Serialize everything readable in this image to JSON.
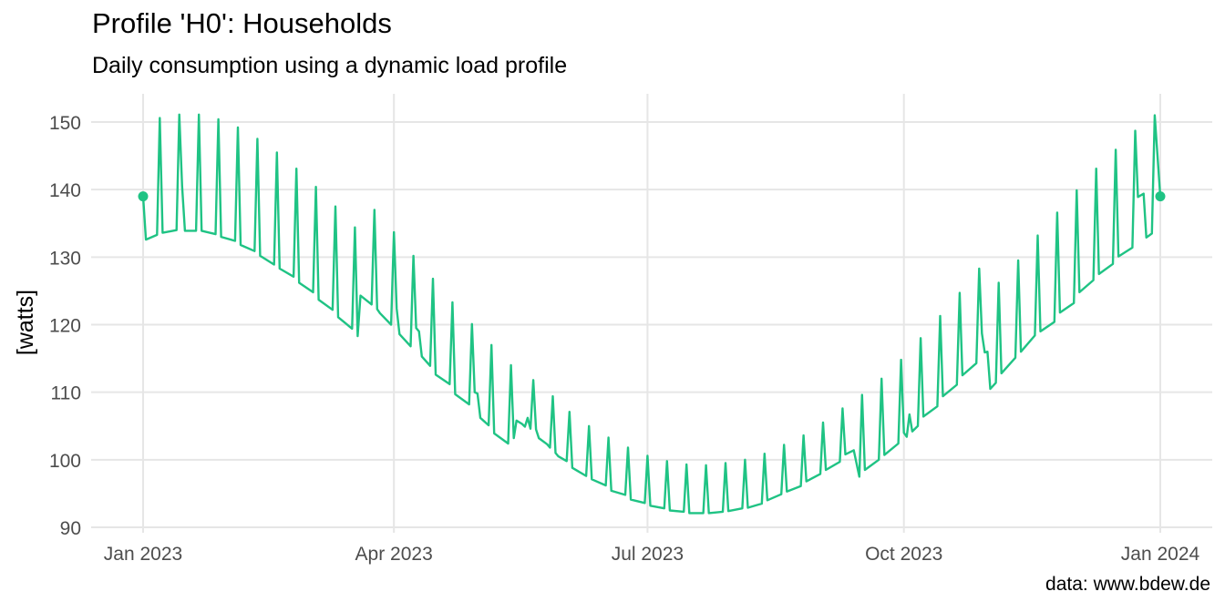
{
  "title": "Profile 'H0': Households",
  "subtitle": "Daily consumption using a dynamic load profile",
  "caption": "data: www.bdew.de",
  "colors": {
    "line": "#1fc384",
    "grid": "#e6e6e6",
    "text": "#4d4d4d"
  },
  "chart_data": {
    "type": "line",
    "title": "Profile 'H0': Households",
    "subtitle": "Daily consumption using a dynamic load profile",
    "xlabel": "",
    "ylabel": "[watts]",
    "x_range": [
      "2023-01-01",
      "2024-01-01"
    ],
    "ylim": [
      90,
      153
    ],
    "grid": true,
    "x_ticks": [
      {
        "date": "2023-01-01",
        "label": "Jan 2023"
      },
      {
        "date": "2023-04-01",
        "label": "Apr 2023"
      },
      {
        "date": "2023-07-01",
        "label": "Jul 2023"
      },
      {
        "date": "2023-10-01",
        "label": "Oct 2023"
      },
      {
        "date": "2024-01-01",
        "label": "Jan 2024"
      }
    ],
    "y_ticks": [
      90,
      100,
      110,
      120,
      130,
      140,
      150
    ],
    "series": [
      {
        "name": "",
        "points": [
          [
            "2023-01-01",
            139.0
          ],
          [
            "2023-01-02",
            132.6
          ],
          [
            "2023-01-06",
            133.3
          ],
          [
            "2023-01-07",
            150.6
          ],
          [
            "2023-01-08",
            133.6
          ],
          [
            "2023-01-13",
            134.0
          ],
          [
            "2023-01-14",
            151.1
          ],
          [
            "2023-01-15",
            140.5
          ],
          [
            "2023-01-16",
            133.9
          ],
          [
            "2023-01-20",
            133.9
          ],
          [
            "2023-01-21",
            151.1
          ],
          [
            "2023-01-22",
            133.9
          ],
          [
            "2023-01-27",
            133.4
          ],
          [
            "2023-01-28",
            150.4
          ],
          [
            "2023-01-29",
            133.0
          ],
          [
            "2023-02-03",
            132.4
          ],
          [
            "2023-02-04",
            149.2
          ],
          [
            "2023-02-05",
            131.8
          ],
          [
            "2023-02-10",
            130.9
          ],
          [
            "2023-02-11",
            147.5
          ],
          [
            "2023-02-12",
            130.2
          ],
          [
            "2023-02-17",
            128.9
          ],
          [
            "2023-02-18",
            145.5
          ],
          [
            "2023-02-19",
            128.3
          ],
          [
            "2023-02-24",
            127.1
          ],
          [
            "2023-02-25",
            143.1
          ],
          [
            "2023-02-26",
            126.2
          ],
          [
            "2023-03-03",
            124.8
          ],
          [
            "2023-03-04",
            140.4
          ],
          [
            "2023-03-05",
            123.7
          ],
          [
            "2023-03-10",
            122.2
          ],
          [
            "2023-03-11",
            137.5
          ],
          [
            "2023-03-12",
            121.1
          ],
          [
            "2023-03-17",
            119.4
          ],
          [
            "2023-03-18",
            134.4
          ],
          [
            "2023-03-19",
            118.3
          ],
          [
            "2023-03-20",
            124.3
          ],
          [
            "2023-03-24",
            123.0
          ],
          [
            "2023-03-25",
            137.0
          ],
          [
            "2023-03-26",
            122.3
          ],
          [
            "2023-03-27",
            121.7
          ],
          [
            "2023-03-31",
            120.0
          ],
          [
            "2023-04-01",
            133.7
          ],
          [
            "2023-04-02",
            122.4
          ],
          [
            "2023-04-03",
            118.6
          ],
          [
            "2023-04-07",
            116.8
          ],
          [
            "2023-04-08",
            130.2
          ],
          [
            "2023-04-09",
            119.5
          ],
          [
            "2023-04-10",
            119.0
          ],
          [
            "2023-04-11",
            115.3
          ],
          [
            "2023-04-14",
            113.9
          ],
          [
            "2023-04-15",
            126.8
          ],
          [
            "2023-04-16",
            112.6
          ],
          [
            "2023-04-21",
            111.2
          ],
          [
            "2023-04-22",
            123.3
          ],
          [
            "2023-04-23",
            109.7
          ],
          [
            "2023-04-28",
            108.2
          ],
          [
            "2023-04-29",
            120.1
          ],
          [
            "2023-04-30",
            110.0
          ],
          [
            "2023-05-01",
            109.8
          ],
          [
            "2023-05-02",
            106.2
          ],
          [
            "2023-05-05",
            105.1
          ],
          [
            "2023-05-06",
            117.0
          ],
          [
            "2023-05-07",
            103.9
          ],
          [
            "2023-05-12",
            102.4
          ],
          [
            "2023-05-13",
            114.0
          ],
          [
            "2023-05-14",
            103.2
          ],
          [
            "2023-05-15",
            105.8
          ],
          [
            "2023-05-17",
            105.3
          ],
          [
            "2023-05-18",
            104.9
          ],
          [
            "2023-05-19",
            106.2
          ],
          [
            "2023-05-20",
            104.6
          ],
          [
            "2023-05-21",
            111.8
          ],
          [
            "2023-05-22",
            104.5
          ],
          [
            "2023-05-23",
            103.2
          ],
          [
            "2023-05-26",
            102.3
          ],
          [
            "2023-05-27",
            101.8
          ],
          [
            "2023-05-28",
            109.4
          ],
          [
            "2023-05-29",
            101.0
          ],
          [
            "2023-05-30",
            100.5
          ],
          [
            "2023-06-02",
            99.8
          ],
          [
            "2023-06-03",
            107.1
          ],
          [
            "2023-06-04",
            98.8
          ],
          [
            "2023-06-09",
            97.6
          ],
          [
            "2023-06-10",
            105.0
          ],
          [
            "2023-06-11",
            97.1
          ],
          [
            "2023-06-16",
            96.2
          ],
          [
            "2023-06-17",
            103.3
          ],
          [
            "2023-06-18",
            95.4
          ],
          [
            "2023-06-23",
            94.8
          ],
          [
            "2023-06-24",
            101.8
          ],
          [
            "2023-06-25",
            94.1
          ],
          [
            "2023-06-30",
            93.6
          ],
          [
            "2023-07-01",
            100.6
          ],
          [
            "2023-07-02",
            93.2
          ],
          [
            "2023-07-07",
            92.8
          ],
          [
            "2023-07-08",
            99.8
          ],
          [
            "2023-07-09",
            92.5
          ],
          [
            "2023-07-14",
            92.3
          ],
          [
            "2023-07-15",
            99.3
          ],
          [
            "2023-07-16",
            92.1
          ],
          [
            "2023-07-21",
            92.1
          ],
          [
            "2023-07-22",
            99.2
          ],
          [
            "2023-07-23",
            92.1
          ],
          [
            "2023-07-28",
            92.3
          ],
          [
            "2023-07-29",
            99.5
          ],
          [
            "2023-07-30",
            92.4
          ],
          [
            "2023-08-04",
            92.8
          ],
          [
            "2023-08-05",
            100.0
          ],
          [
            "2023-08-06",
            92.9
          ],
          [
            "2023-08-11",
            93.5
          ],
          [
            "2023-08-12",
            100.9
          ],
          [
            "2023-08-13",
            94.0
          ],
          [
            "2023-08-18",
            94.9
          ],
          [
            "2023-08-19",
            102.2
          ],
          [
            "2023-08-20",
            95.3
          ],
          [
            "2023-08-25",
            96.1
          ],
          [
            "2023-08-26",
            103.6
          ],
          [
            "2023-08-27",
            96.8
          ],
          [
            "2023-09-01",
            97.9
          ],
          [
            "2023-09-02",
            105.5
          ],
          [
            "2023-09-03",
            98.5
          ],
          [
            "2023-09-08",
            99.7
          ],
          [
            "2023-09-09",
            107.6
          ],
          [
            "2023-09-10",
            100.8
          ],
          [
            "2023-09-13",
            101.4
          ],
          [
            "2023-09-15",
            97.5
          ],
          [
            "2023-09-16",
            109.6
          ],
          [
            "2023-09-17",
            98.5
          ],
          [
            "2023-09-22",
            100.0
          ],
          [
            "2023-09-23",
            112.0
          ],
          [
            "2023-09-24",
            100.7
          ],
          [
            "2023-09-29",
            102.4
          ],
          [
            "2023-09-30",
            114.8
          ],
          [
            "2023-10-01",
            104.0
          ],
          [
            "2023-10-02",
            103.4
          ],
          [
            "2023-10-03",
            106.7
          ],
          [
            "2023-10-04",
            104.2
          ],
          [
            "2023-10-06",
            105.0
          ],
          [
            "2023-10-07",
            118.0
          ],
          [
            "2023-10-08",
            106.4
          ],
          [
            "2023-10-13",
            107.9
          ],
          [
            "2023-10-14",
            121.3
          ],
          [
            "2023-10-15",
            109.4
          ],
          [
            "2023-10-20",
            111.1
          ],
          [
            "2023-10-21",
            124.7
          ],
          [
            "2023-10-22",
            112.5
          ],
          [
            "2023-10-27",
            114.3
          ],
          [
            "2023-10-28",
            128.3
          ],
          [
            "2023-10-29",
            118.7
          ],
          [
            "2023-10-30",
            115.9
          ],
          [
            "2023-10-31",
            116.0
          ],
          [
            "2023-11-01",
            110.5
          ],
          [
            "2023-11-03",
            111.4
          ],
          [
            "2023-11-04",
            126.2
          ],
          [
            "2023-11-05",
            112.8
          ],
          [
            "2023-11-10",
            115.1
          ],
          [
            "2023-11-11",
            129.5
          ],
          [
            "2023-11-12",
            116.0
          ],
          [
            "2023-11-17",
            118.4
          ],
          [
            "2023-11-18",
            133.2
          ],
          [
            "2023-11-19",
            119.0
          ],
          [
            "2023-11-24",
            120.4
          ],
          [
            "2023-11-25",
            136.6
          ],
          [
            "2023-11-26",
            121.8
          ],
          [
            "2023-12-01",
            123.2
          ],
          [
            "2023-12-02",
            139.9
          ],
          [
            "2023-12-03",
            124.8
          ],
          [
            "2023-12-08",
            126.6
          ],
          [
            "2023-12-09",
            143.1
          ],
          [
            "2023-12-10",
            127.5
          ],
          [
            "2023-12-15",
            129.0
          ],
          [
            "2023-12-16",
            145.9
          ],
          [
            "2023-12-17",
            130.1
          ],
          [
            "2023-12-22",
            131.4
          ],
          [
            "2023-12-23",
            148.7
          ],
          [
            "2023-12-24",
            138.9
          ],
          [
            "2023-12-26",
            139.4
          ],
          [
            "2023-12-27",
            132.9
          ],
          [
            "2023-12-29",
            133.5
          ],
          [
            "2023-12-30",
            151.0
          ],
          [
            "2024-01-01",
            139.0
          ]
        ]
      }
    ],
    "endpoints": [
      [
        "2023-01-01",
        139.0
      ],
      [
        "2024-01-01",
        139.0
      ]
    ]
  }
}
